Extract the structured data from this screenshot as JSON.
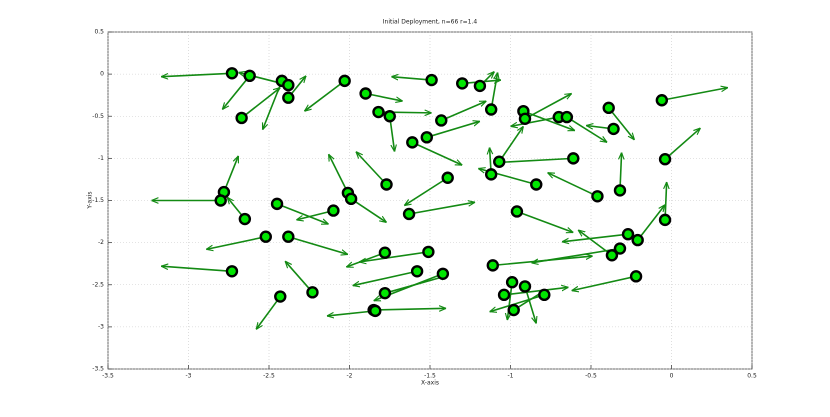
{
  "chart_data": {
    "type": "scatter",
    "title": "Initial Deployment, n=66 r=1.4",
    "xlabel": "X-axis",
    "ylabel": "Y-axis",
    "xlim": [
      -3.5,
      0.5
    ],
    "ylim": [
      -3.5,
      0.5
    ],
    "xticks": [
      -3.5,
      -3,
      -2.5,
      -2,
      -1.5,
      -1,
      -0.5,
      0,
      0.5
    ],
    "yticks": [
      -3.5,
      -3,
      -2.5,
      -2,
      -1.5,
      -1,
      -0.5,
      0,
      0.5
    ],
    "grid": true,
    "color": "#00e600",
    "edge_color": "#000000",
    "arrow_color": "#138a13",
    "x": [
      -2.73,
      -2.62,
      -2.42,
      -2.38,
      -2.38,
      -2.67,
      -2.03,
      -1.9,
      -1.82,
      -1.75,
      -1.49,
      -1.3,
      -1.19,
      -1.12,
      -1.43,
      -1.52,
      -1.61,
      -0.92,
      -0.91,
      -0.7,
      -0.65,
      -0.39,
      -0.36,
      -0.06,
      -0.61,
      -1.07,
      -0.84,
      -1.12,
      -1.39,
      -1.77,
      -0.46,
      -0.32,
      -0.04,
      -2.78,
      -2.8,
      -2.65,
      -2.52,
      -2.45,
      -2.38,
      -2.1,
      -2.01,
      -1.99,
      -1.63,
      -0.96,
      -0.04,
      -0.27,
      -0.21,
      -0.37,
      -0.32,
      -1.78,
      -1.51,
      -1.58,
      -1.11,
      -2.73,
      -1.42,
      -2.23,
      -2.43,
      -1.78,
      -1.85,
      -1.84,
      -1.04,
      -0.99,
      -0.91,
      -0.79,
      -0.98,
      -0.22
    ],
    "y": [
      0.01,
      -0.02,
      -0.08,
      -0.13,
      -0.28,
      -0.52,
      -0.08,
      -0.23,
      -0.45,
      -0.5,
      -0.07,
      -0.11,
      -0.14,
      -0.42,
      -0.55,
      -0.75,
      -0.81,
      -0.44,
      -0.53,
      -0.51,
      -0.51,
      -0.4,
      -0.65,
      -0.31,
      -1.0,
      -1.04,
      -1.31,
      -1.19,
      -1.23,
      -1.31,
      -1.45,
      -1.38,
      -1.01,
      -1.4,
      -1.5,
      -1.72,
      -1.93,
      -1.54,
      -1.93,
      -1.62,
      -1.41,
      -1.48,
      -1.66,
      -1.63,
      -1.73,
      -1.9,
      -1.97,
      -2.15,
      -2.07,
      -2.12,
      -2.11,
      -2.34,
      -2.27,
      -2.34,
      -2.37,
      -2.59,
      -2.64,
      -2.6,
      -2.8,
      -2.81,
      -2.62,
      -2.47,
      -2.52,
      -2.62,
      -2.8,
      -2.4
    ],
    "u": [
      -0.44,
      -0.17,
      -0.12,
      -0.31,
      0.11,
      0.24,
      -0.25,
      0.23,
      0.33,
      0.03,
      -0.25,
      0.24,
      0.09,
      0.04,
      0.28,
      0.33,
      0.31,
      0.32,
      0.29,
      -0.3,
      0.25,
      0.16,
      -0.17,
      0.41,
      -0.48,
      0.15,
      -0.36,
      -0.01,
      -0.27,
      -0.19,
      -0.31,
      0.01,
      0.22,
      0.09,
      -0.43,
      -0.11,
      -0.37,
      0.32,
      0.37,
      -0.23,
      -0.12,
      0.22,
      0.41,
      0.35,
      0.01,
      -0.41,
      0.17,
      -0.21,
      -0.55,
      -0.24,
      -0.43,
      -0.4,
      0.62,
      -0.44,
      -0.43,
      -0.17,
      -0.15,
      0.39,
      0.45,
      -0.3,
      0.4,
      -0.03,
      0.07,
      -0.34,
      0.2,
      -0.4
    ],
    "v": [
      -0.04,
      -0.4,
      -0.58,
      0.15,
      0.26,
      0.36,
      -0.36,
      -0.09,
      -0.01,
      -0.42,
      0.04,
      0.04,
      0.17,
      0.44,
      0.23,
      0.19,
      -0.27,
      -0.23,
      0.3,
      -0.11,
      -0.3,
      -0.38,
      0.04,
      0.15,
      -0.05,
      0.42,
      0.19,
      0.32,
      -0.33,
      0.39,
      0.28,
      0.45,
      0.37,
      0.43,
      0,
      0.26,
      -0.15,
      -0.24,
      -0.21,
      -0.11,
      0.46,
      -0.28,
      0.14,
      -0.25,
      0.45,
      -0.09,
      0.42,
      0.3,
      -0.17,
      -0.17,
      -0.12,
      -0.17,
      0.11,
      0.06,
      -0.32,
      0.37,
      -0.39,
      0.21,
      0.02,
      -0.06,
      0.09,
      -0.45,
      -0.44,
      -0.2,
      0.24,
      -0.17
    ]
  }
}
